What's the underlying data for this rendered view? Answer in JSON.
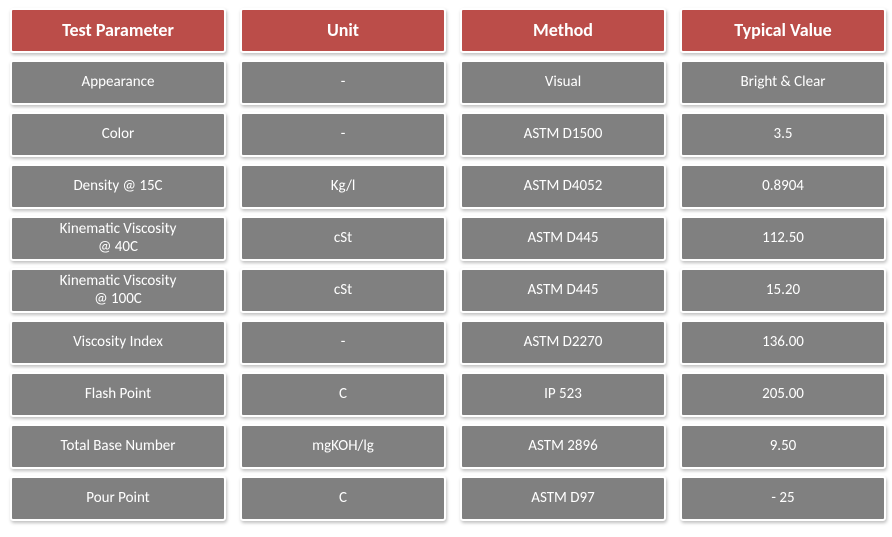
{
  "header_bg": "#bb4d49",
  "body_bg": "#808080",
  "text_color": "#ffffff",
  "columns": [
    "Test Parameter",
    "Unit",
    "Method",
    "Typical Value"
  ],
  "rows": [
    {
      "param": "Appearance",
      "unit": "-",
      "method": "Visual",
      "value": "Bright & Clear"
    },
    {
      "param": "Color",
      "unit": "-",
      "method": "ASTM D1500",
      "value": "3.5"
    },
    {
      "param": "Density @ 15C",
      "unit": "Kg/l",
      "method": "ASTM D4052",
      "value": "0.8904"
    },
    {
      "param": "Kinematic Viscosity\n@ 40C",
      "unit": "cSt",
      "method": "ASTM D445",
      "value": "112.50"
    },
    {
      "param": "Kinematic Viscosity\n@ 100C",
      "unit": "cSt",
      "method": "ASTM D445",
      "value": "15.20"
    },
    {
      "param": "Viscosity Index",
      "unit": "-",
      "method": "ASTM D2270",
      "value": "136.00"
    },
    {
      "param": "Flash Point",
      "unit": "C",
      "method": "IP 523",
      "value": "205.00"
    },
    {
      "param": "Total Base Number",
      "unit": "mgKOH/lg",
      "method": "ASTM 2896",
      "value": "9.50"
    },
    {
      "param": "Pour Point",
      "unit": "C",
      "method": "ASTM D97",
      "value": "- 25"
    }
  ]
}
